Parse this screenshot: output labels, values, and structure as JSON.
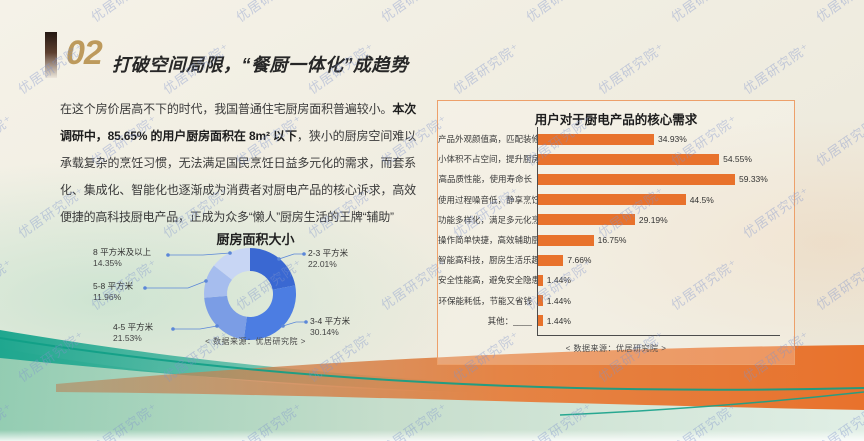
{
  "slide": {
    "section_number": "02",
    "title": "打破空间局限，“餐厨一体化”成趋势",
    "watermark": "优居研究院⁺"
  },
  "paragraph": {
    "seg1": "在这个房价居高不下的时代，我国普通住宅厨房面积普遍较小。",
    "seg2_bold": "本次调研中，85.65% 的用户厨房面积在 8m² 以下",
    "seg3": "，狭小的厨房空间难以承载复杂的烹饪习惯，无法满足国民烹饪日益多元化的需求，而套系化、集成化、智能化也逐渐成为消费者对厨电产品的核心诉求，高效便捷的高科技厨电产品，正成为众多“懒人”厨房生活的王牌“辅助”"
  },
  "chart_data": [
    {
      "type": "pie",
      "donut": true,
      "title": "厨房面积大小",
      "source": "< 数据来源：优居研究院 >",
      "slices": [
        {
          "label": "2-3 平方米",
          "value": 22.01,
          "pct_label": "22.01%",
          "color": "#3a68d2"
        },
        {
          "label": "3-4 平方米",
          "value": 30.14,
          "pct_label": "30.14%",
          "color": "#4c7de2"
        },
        {
          "label": "4-5 平方米",
          "value": 21.53,
          "pct_label": "21.53%",
          "color": "#7b9de5"
        },
        {
          "label": "5-8 平方米",
          "value": 11.96,
          "pct_label": "11.96%",
          "color": "#a6bdee"
        },
        {
          "label": "8 平方米及以上",
          "value": 14.35,
          "pct_label": "14.35%",
          "color": "#c8d6f4"
        }
      ]
    },
    {
      "type": "bar",
      "orientation": "horizontal",
      "title": "用户对于厨电产品的核心需求",
      "source": "< 数据来源：优居研究院 >",
      "bar_color": "#e8722c",
      "xlim": [
        0,
        65
      ],
      "categories": [
        "产品外观颜值高，匹配装修风格",
        "小体积不占空间，提升厨房利用率",
        "高品质性能，使用寿命长",
        "使用过程噪音低，静享烹饪时光",
        "功能多样化，满足多元化烹饪需求",
        "操作简单快捷，高效辅助厨艺发挥",
        "智能高科技，厨房生活乐趣多",
        "安全性能高，避免安全隐患",
        "环保能耗低，节能又省钱",
        "其他：____"
      ],
      "values": [
        34.93,
        54.55,
        59.33,
        44.5,
        29.19,
        16.75,
        7.66,
        1.44,
        1.44,
        1.44
      ],
      "value_labels": [
        "34.93%",
        "54.55%",
        "59.33%",
        "44.5%",
        "29.19%",
        "16.75%",
        "7.66%",
        "1.44%",
        "1.44%",
        "1.44%"
      ]
    }
  ]
}
